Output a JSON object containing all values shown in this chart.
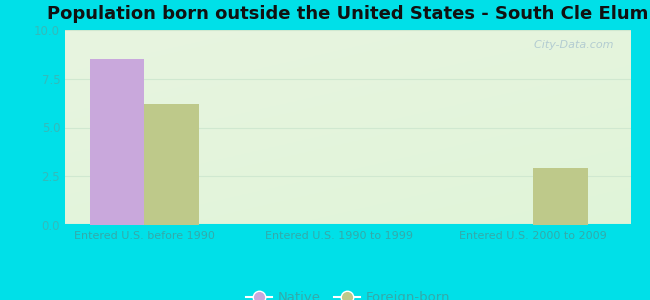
{
  "title": "Population born outside the United States - South Cle Elum",
  "categories": [
    "Entered U.S. before 1990",
    "Entered U.S. 1990 to 1999",
    "Entered U.S. 2000 to 2009"
  ],
  "native_values": [
    8.5,
    0,
    0
  ],
  "foreign_values": [
    6.2,
    0,
    2.9
  ],
  "native_color": "#c9a8dc",
  "foreign_color": "#bec98a",
  "ylim": [
    0,
    10
  ],
  "yticks": [
    0,
    2.5,
    5,
    7.5,
    10
  ],
  "background_color": "#00e0e8",
  "title_fontsize": 13,
  "bar_width": 0.28,
  "watermark": "  City-Data.com",
  "legend_labels": [
    "Native",
    "Foreign-born"
  ],
  "tick_color": "#33bbbb",
  "xlabel_color": "#33aaaa",
  "grid_color": "#d0e8d0",
  "plot_bg": "#e8f5e0"
}
